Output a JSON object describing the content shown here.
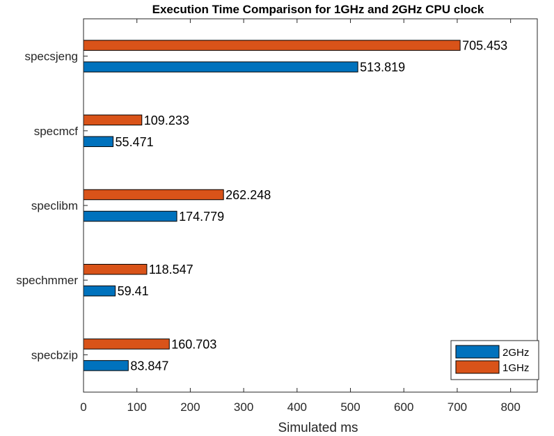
{
  "chart_data": {
    "type": "bar",
    "orientation": "horizontal",
    "title": "Execution Time Comparison for 1GHz and 2GHz CPU clock",
    "xlabel": "Simulated ms",
    "ylabel": "",
    "xlim": [
      0,
      850
    ],
    "xticks": [
      0,
      100,
      200,
      300,
      400,
      500,
      600,
      700,
      800
    ],
    "categories": [
      "specbzip",
      "spechmmer",
      "speclibm",
      "specmcf",
      "specsjeng"
    ],
    "series": [
      {
        "name": "2GHz",
        "color": "#0072BD",
        "values": [
          83.847,
          59.41,
          174.779,
          55.471,
          513.819
        ],
        "labels": [
          "83.847",
          "59.41",
          "174.779",
          "55.471",
          "513.819"
        ]
      },
      {
        "name": "1GHz",
        "color": "#D95319",
        "values": [
          160.703,
          118.547,
          262.248,
          109.233,
          705.453
        ],
        "labels": [
          "160.703",
          "118.547",
          "262.248",
          "109.233",
          "705.453"
        ]
      }
    ],
    "grid": false,
    "legend_position": "bottom-right"
  }
}
